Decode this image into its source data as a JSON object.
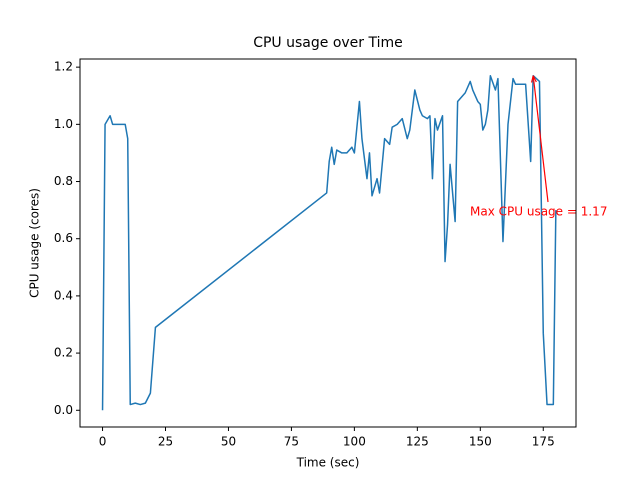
{
  "chart_data": {
    "type": "line",
    "title": "CPU usage over Time",
    "x_label": "Time (sec)",
    "y_label": "CPU usage (cores)",
    "x": [
      0,
      1,
      3,
      4,
      7,
      9,
      10,
      11,
      13,
      15,
      17,
      19,
      21,
      89,
      90,
      91,
      92,
      93,
      95,
      97,
      99,
      100,
      102,
      103,
      104,
      105,
      106,
      107,
      109,
      110,
      112,
      114,
      115,
      117,
      119,
      121,
      122,
      124,
      126,
      127,
      129,
      130,
      131,
      132,
      133,
      135,
      136,
      137,
      138,
      140,
      141,
      142,
      144,
      146,
      147,
      149,
      150,
      151,
      152,
      153,
      154,
      156,
      157,
      159,
      161,
      163,
      164,
      167,
      168,
      170,
      171,
      173.5,
      175,
      176.5,
      179,
      180
    ],
    "series": [
      {
        "name": "CPU usage",
        "color": "#1f77b4",
        "values": [
          0,
          1.0,
          1.03,
          1.0,
          1.0,
          1.0,
          0.95,
          0.02,
          0.025,
          0.02,
          0.025,
          0.06,
          0.29,
          0.76,
          0.87,
          0.92,
          0.86,
          0.91,
          0.9,
          0.9,
          0.92,
          0.9,
          1.08,
          0.95,
          0.88,
          0.81,
          0.9,
          0.75,
          0.81,
          0.76,
          0.95,
          0.93,
          0.99,
          1.0,
          1.02,
          0.95,
          0.98,
          1.12,
          1.05,
          1.03,
          1.02,
          1.03,
          0.81,
          1.02,
          0.98,
          1.03,
          0.52,
          0.65,
          0.86,
          0.66,
          1.08,
          1.09,
          1.11,
          1.15,
          1.12,
          1.08,
          1.07,
          0.98,
          1.0,
          1.05,
          1.17,
          1.12,
          1.16,
          0.59,
          1.0,
          1.16,
          1.14,
          1.14,
          1.14,
          0.87,
          1.17,
          1.15,
          0.27,
          0.02,
          0.02,
          0.7
        ]
      }
    ],
    "annotation": {
      "text": "Max CPU usage = 1.17",
      "x": 171,
      "y": 1.17,
      "color": "red"
    },
    "xlim": [
      -8.95,
      188
    ],
    "ylim": [
      -0.0585,
      1.2285
    ],
    "xticks": [
      0,
      25,
      50,
      75,
      100,
      125,
      150,
      175
    ],
    "yticks": [
      {
        "value": 0,
        "label": "0.0"
      },
      0.2,
      0.4,
      0.6,
      0.8,
      {
        "value": 1,
        "label": "1.0"
      },
      1.2
    ]
  }
}
